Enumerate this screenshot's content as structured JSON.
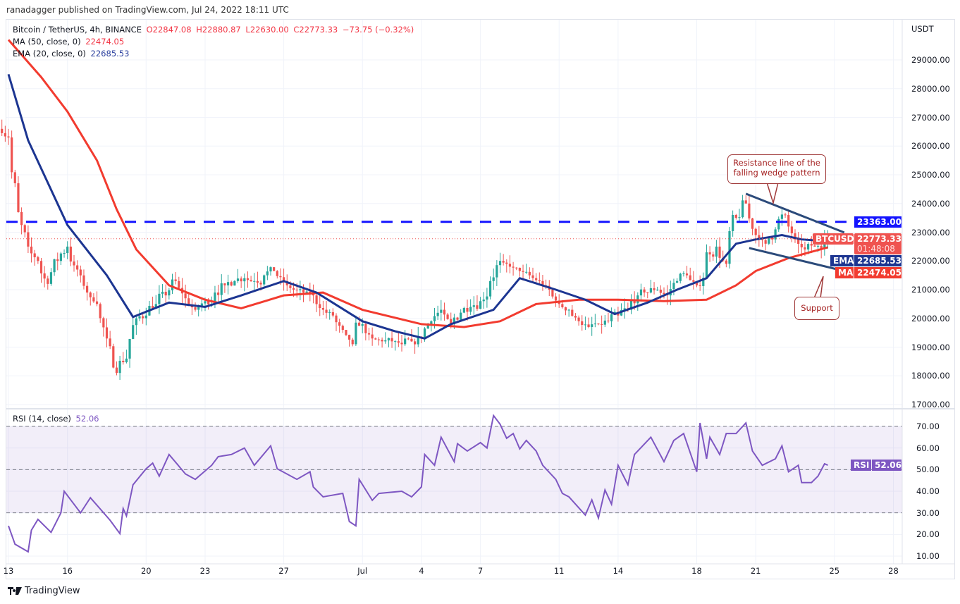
{
  "publisher": "ranadagger published on TradingView.com, Jul 24, 2022 18:11 UTC",
  "legend": {
    "symbol": "Bitcoin / TetherUS, 4h, BINANCE",
    "open": "O22847.08",
    "high": "H22880.87",
    "low": "L22630.00",
    "close": "C22773.33",
    "change": "−73.75 (−0.32%)",
    "ma_label": "MA (50, close, 0)",
    "ma_value": "22474.05",
    "ema_label": "EMA (20, close, 0)",
    "ema_value": "22685.53",
    "rsi_label": "RSI (14, close)",
    "rsi_value": "52.06"
  },
  "price_axis": {
    "currency": "USDT",
    "ticks": [
      "29000.00",
      "28000.00",
      "27000.00",
      "26000.00",
      "25000.00",
      "24000.00",
      "23000.00",
      "22000.00",
      "21000.00",
      "20000.00",
      "19000.00",
      "18000.00",
      "17000.00"
    ]
  },
  "rsi_axis": {
    "ticks": [
      "70.00",
      "60.00",
      "50.00",
      "40.00",
      "30.00",
      "20.00",
      "10.00"
    ]
  },
  "date_axis": {
    "ticks": [
      "13",
      "16",
      "20",
      "23",
      "27",
      "Jul",
      "4",
      "7",
      "11",
      "14",
      "18",
      "21",
      "25",
      "28"
    ]
  },
  "tags": {
    "level": "23363.00",
    "symbol": "BTCUSDT",
    "last_price": "22773.33",
    "countdown": "01:48:08",
    "ema_tag": "EMA",
    "ema_value": "22685.53",
    "ma_tag": "MA",
    "ma_value": "22474.05",
    "rsi_tag": "RSI",
    "rsi_value": "52.06"
  },
  "annotations": {
    "resistance_callout": "Resistance line of the falling wedge pattern",
    "support_callout": "Support"
  },
  "branding": "TradingView",
  "colors": {
    "up": "#26a69a",
    "down": "#ef5350",
    "ma": "#f23b2f",
    "ema": "#1c3591",
    "rsi": "#7e57c2",
    "level": "#1414ff",
    "wedge": "#2b4a7a"
  },
  "chart_data": [
    {
      "type": "candlestick",
      "symbol": "BTCUSDT",
      "interval": "4h",
      "ylim": [
        17000,
        30000
      ],
      "xlim": [
        "06-13 00",
        "06-28 00"
      ],
      "first_open": 26600,
      "closes": [
        [
          "06-13 00",
          26300
        ],
        [
          "06-13 12",
          23700
        ],
        [
          "06-14 00",
          22500
        ],
        [
          "06-14 12",
          22000
        ],
        [
          "06-15 00",
          21200
        ],
        [
          "06-15 12",
          22000
        ],
        [
          "06-16 00",
          22500
        ],
        [
          "06-16 12",
          21700
        ],
        [
          "06-17 00",
          20900
        ],
        [
          "06-17 12",
          20500
        ],
        [
          "06-18 00",
          19300
        ],
        [
          "06-18 12",
          18100
        ],
        [
          "06-19 00",
          18600
        ],
        [
          "06-19 12",
          20000
        ],
        [
          "06-20 00",
          20100
        ],
        [
          "06-20 12",
          20500
        ],
        [
          "06-21 00",
          20800
        ],
        [
          "06-21 12",
          21300
        ],
        [
          "06-22 00",
          20700
        ],
        [
          "06-22 12",
          20300
        ],
        [
          "06-23 00",
          20600
        ],
        [
          "06-23 12",
          20900
        ],
        [
          "06-24 00",
          21150
        ],
        [
          "06-24 12",
          21300
        ],
        [
          "06-25 00",
          21400
        ],
        [
          "06-25 12",
          21300
        ],
        [
          "06-26 00",
          21500
        ],
        [
          "06-26 12",
          21650
        ],
        [
          "06-27 00",
          21300
        ],
        [
          "06-27 12",
          21000
        ],
        [
          "06-28 00",
          20900
        ],
        [
          "06-28 12",
          20800
        ],
        [
          "06-29 00",
          20300
        ],
        [
          "06-29 12",
          20100
        ],
        [
          "06-30 00",
          19600
        ],
        [
          "06-30 12",
          19100
        ],
        [
          "07-01 00",
          19800
        ],
        [
          "07-01 12",
          19300
        ],
        [
          "07-02 00",
          19200
        ],
        [
          "07-02 12",
          19200
        ],
        [
          "07-03 00",
          19100
        ],
        [
          "07-03 12",
          19200
        ],
        [
          "07-04 00",
          19300
        ],
        [
          "07-04 12",
          19900
        ],
        [
          "07-05 00",
          20300
        ],
        [
          "07-05 12",
          19800
        ],
        [
          "07-06 00",
          20200
        ],
        [
          "07-06 12",
          20400
        ],
        [
          "07-07 00",
          20600
        ],
        [
          "07-07 12",
          21300
        ],
        [
          "07-08 00",
          22000
        ],
        [
          "07-08 12",
          21800
        ],
        [
          "07-09 00",
          21650
        ],
        [
          "07-09 12",
          21500
        ],
        [
          "07-10 00",
          21300
        ],
        [
          "07-10 12",
          21000
        ],
        [
          "07-11 00",
          20500
        ],
        [
          "07-11 12",
          20300
        ],
        [
          "07-12 00",
          19900
        ],
        [
          "07-12 12",
          19700
        ],
        [
          "07-13 00",
          19800
        ],
        [
          "07-13 12",
          19900
        ],
        [
          "07-14 00",
          20100
        ],
        [
          "07-14 12",
          20300
        ],
        [
          "07-15 00",
          20800
        ],
        [
          "07-15 12",
          20900
        ],
        [
          "07-16 00",
          21000
        ],
        [
          "07-16 12",
          20800
        ],
        [
          "07-17 00",
          21300
        ],
        [
          "07-17 12",
          21500
        ],
        [
          "07-18 00",
          21150
        ],
        [
          "07-18 12",
          22300
        ],
        [
          "07-19 00",
          22500
        ],
        [
          "07-19 12",
          21900
        ],
        [
          "07-20 00",
          23500
        ],
        [
          "07-20 12",
          24000
        ],
        [
          "07-21 00",
          22900
        ],
        [
          "07-21 12",
          22600
        ],
        [
          "07-22 00",
          23100
        ],
        [
          "07-22 12",
          23600
        ],
        [
          "07-23 00",
          22750
        ],
        [
          "07-23 12",
          22400
        ],
        [
          "07-24 00",
          22500
        ],
        [
          "07-24 12",
          22750
        ],
        [
          "07-24 16",
          22773.33
        ]
      ],
      "ma50": [
        [
          "06-13 00",
          29700
        ],
        [
          "06-14 16",
          28400
        ],
        [
          "06-16 00",
          27200
        ],
        [
          "06-17 12",
          25500
        ],
        [
          "06-18 12",
          23800
        ],
        [
          "06-19 12",
          22400
        ],
        [
          "06-21 04",
          21150
        ],
        [
          "06-23 00",
          20650
        ],
        [
          "06-24 20",
          20350
        ],
        [
          "06-27 00",
          20800
        ],
        [
          "06-29 00",
          20900
        ],
        [
          "07-01 00",
          20300
        ],
        [
          "07-04 00",
          19800
        ],
        [
          "07-06 04",
          19700
        ],
        [
          "07-08 00",
          19900
        ],
        [
          "07-09 20",
          20500
        ],
        [
          "07-12 00",
          20650
        ],
        [
          "07-14 00",
          20650
        ],
        [
          "07-16 08",
          20600
        ],
        [
          "07-18 12",
          20650
        ],
        [
          "07-20 00",
          21150
        ],
        [
          "07-21 00",
          21650
        ],
        [
          "07-22 16",
          22100
        ],
        [
          "07-24 16",
          22474.05
        ]
      ],
      "ema20": [
        [
          "06-13 00",
          28500
        ],
        [
          "06-14 00",
          26200
        ],
        [
          "06-16 00",
          23250
        ],
        [
          "06-18 00",
          21500
        ],
        [
          "06-19 08",
          20050
        ],
        [
          "06-21 04",
          20550
        ],
        [
          "06-23 00",
          20400
        ],
        [
          "06-24 20",
          20800
        ],
        [
          "06-27 00",
          21300
        ],
        [
          "06-28 16",
          20900
        ],
        [
          "07-01 00",
          19900
        ],
        [
          "07-02 16",
          19550
        ],
        [
          "07-04 04",
          19300
        ],
        [
          "07-05 12",
          19800
        ],
        [
          "07-07 16",
          20300
        ],
        [
          "07-09 00",
          21400
        ],
        [
          "07-10 20",
          21000
        ],
        [
          "07-12 08",
          20650
        ],
        [
          "07-13 20",
          20150
        ],
        [
          "07-15 12",
          20550
        ],
        [
          "07-17 00",
          21000
        ],
        [
          "07-18 12",
          21400
        ],
        [
          "07-20 00",
          22600
        ],
        [
          "07-21 00",
          22750
        ],
        [
          "07-22 08",
          22900
        ],
        [
          "07-23 08",
          22750
        ],
        [
          "07-24 16",
          22685.53
        ]
      ],
      "horizontal_level": 23363,
      "wedge_resistance": [
        [
          "07-20 12",
          24340
        ],
        [
          "07-25 12",
          22990
        ]
      ],
      "wedge_support": [
        [
          "07-20 16",
          22450
        ],
        [
          "07-25 06",
          21690
        ]
      ]
    },
    {
      "type": "line",
      "name": "RSI (14, close)",
      "ylim": [
        10,
        75
      ],
      "bands": [
        30,
        50,
        70
      ],
      "points": [
        [
          "06-13 00",
          24
        ],
        [
          "06-13 08",
          15.5
        ],
        [
          "06-14 00",
          12
        ],
        [
          "06-14 04",
          22
        ],
        [
          "06-14 12",
          27
        ],
        [
          "06-15 04",
          21
        ],
        [
          "06-15 16",
          30
        ],
        [
          "06-15 20",
          40
        ],
        [
          "06-16 16",
          30
        ],
        [
          "06-17 04",
          37
        ],
        [
          "06-18 04",
          26.6
        ],
        [
          "06-18 16",
          20.4
        ],
        [
          "06-18 20",
          32
        ],
        [
          "06-19 00",
          28.6
        ],
        [
          "06-19 08",
          43
        ],
        [
          "06-20 00",
          50.4
        ],
        [
          "06-20 08",
          53
        ],
        [
          "06-20 16",
          47
        ],
        [
          "06-21 04",
          57
        ],
        [
          "06-22 00",
          48
        ],
        [
          "06-22 12",
          45.5
        ],
        [
          "06-23 08",
          52
        ],
        [
          "06-23 16",
          56
        ],
        [
          "06-24 08",
          57
        ],
        [
          "06-25 00",
          60
        ],
        [
          "06-25 12",
          52
        ],
        [
          "06-26 08",
          61
        ],
        [
          "06-26 16",
          50.4
        ],
        [
          "06-27 16",
          45.5
        ],
        [
          "06-28 08",
          49
        ],
        [
          "06-28 12",
          42
        ],
        [
          "06-29 00",
          37.4
        ],
        [
          "06-30 00",
          39
        ],
        [
          "06-30 08",
          26
        ],
        [
          "06-30 16",
          24
        ],
        [
          "06-30 20",
          45.5
        ],
        [
          "07-01 12",
          35.8
        ],
        [
          "07-01 20",
          39
        ],
        [
          "07-03 00",
          40
        ],
        [
          "07-03 12",
          37.4
        ],
        [
          "07-04 00",
          42
        ],
        [
          "07-04 04",
          57
        ],
        [
          "07-04 16",
          52
        ],
        [
          "07-05 00",
          65
        ],
        [
          "07-05 16",
          53.7
        ],
        [
          "07-05 20",
          62
        ],
        [
          "07-06 08",
          58.6
        ],
        [
          "07-07 00",
          62.5
        ],
        [
          "07-07 08",
          60
        ],
        [
          "07-07 16",
          75
        ],
        [
          "07-08 00",
          71
        ],
        [
          "07-08 08",
          64.5
        ],
        [
          "07-08 16",
          66.7
        ],
        [
          "07-09 00",
          59.6
        ],
        [
          "07-09 08",
          63.5
        ],
        [
          "07-09 20",
          58.6
        ],
        [
          "07-10 04",
          52
        ],
        [
          "07-10 20",
          45.5
        ],
        [
          "07-11 04",
          39
        ],
        [
          "07-11 12",
          37.4
        ],
        [
          "07-12 08",
          29
        ],
        [
          "07-12 16",
          36
        ],
        [
          "07-13 00",
          27.6
        ],
        [
          "07-13 08",
          40.6
        ],
        [
          "07-13 16",
          34
        ],
        [
          "07-14 00",
          52
        ],
        [
          "07-14 12",
          43
        ],
        [
          "07-14 20",
          57
        ],
        [
          "07-15 16",
          65
        ],
        [
          "07-16 08",
          53.7
        ],
        [
          "07-16 20",
          63.5
        ],
        [
          "07-17 08",
          66.7
        ],
        [
          "07-18 00",
          49
        ],
        [
          "07-18 04",
          71.6
        ],
        [
          "07-18 12",
          55
        ],
        [
          "07-18 16",
          65
        ],
        [
          "07-19 04",
          57
        ],
        [
          "07-19 12",
          66.7
        ],
        [
          "07-20 00",
          66.7
        ],
        [
          "07-20 12",
          71.6
        ],
        [
          "07-20 20",
          58.6
        ],
        [
          "07-21 08",
          52
        ],
        [
          "07-22 00",
          55
        ],
        [
          "07-22 08",
          61
        ],
        [
          "07-22 16",
          49
        ],
        [
          "07-23 04",
          52
        ],
        [
          "07-23 08",
          44
        ],
        [
          "07-23 20",
          44
        ],
        [
          "07-24 04",
          47
        ],
        [
          "07-24 12",
          52.7
        ],
        [
          "07-24 16",
          52.06
        ]
      ]
    }
  ]
}
